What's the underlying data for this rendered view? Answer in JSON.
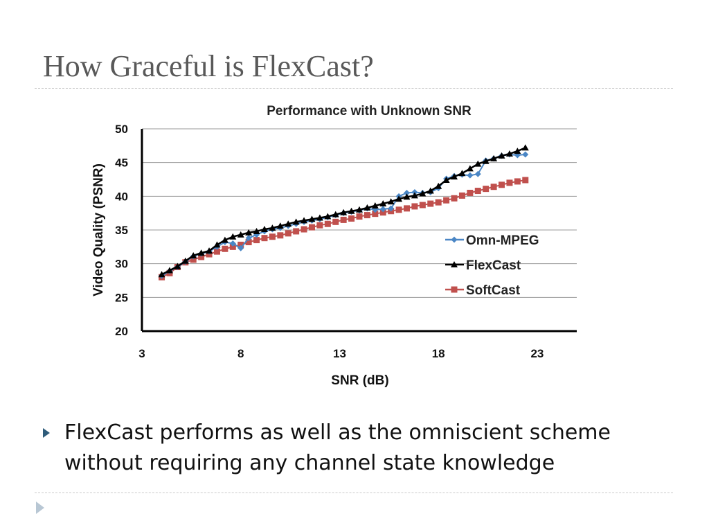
{
  "slide": {
    "title": "How Graceful is FlexCast?",
    "bullet_text": "FlexCast performs as well as the omniscient scheme without requiring any channel state knowledge"
  },
  "chart_data": {
    "type": "line",
    "title": "Performance with Unknown SNR",
    "xlabel": "SNR (dB)",
    "ylabel": "Video Quality (PSNR)",
    "xlim": [
      3,
      25
    ],
    "ylim": [
      20,
      50
    ],
    "xticks": [
      3,
      8,
      13,
      18,
      23
    ],
    "yticks": [
      20,
      25,
      30,
      35,
      40,
      45,
      50
    ],
    "grid": "horizontal",
    "legend_position": "right",
    "series": [
      {
        "name": "Omn-MPEG",
        "color": "#4a86c5",
        "marker": "diamond",
        "x": [
          4,
          4.4,
          4.8,
          5.2,
          5.6,
          6,
          6.4,
          6.8,
          7.2,
          7.6,
          8,
          8.4,
          8.8,
          9.2,
          9.6,
          10,
          10.4,
          10.8,
          11.2,
          11.6,
          12,
          12.4,
          12.8,
          13.2,
          13.6,
          14,
          14.4,
          14.8,
          15.2,
          15.6,
          16,
          16.4,
          16.8,
          17.2,
          17.6,
          18,
          18.4,
          18.8,
          19.2,
          19.6,
          20,
          20.4,
          20.8,
          21.2,
          21.6,
          22,
          22.4
        ],
        "y": [
          28.2,
          28.9,
          29.5,
          30.3,
          31.1,
          31.5,
          31.8,
          32.5,
          33.2,
          33.0,
          32.3,
          33.8,
          34.3,
          34.8,
          35.1,
          35.3,
          35.6,
          35.9,
          36.2,
          36.4,
          36.6,
          36.9,
          37.2,
          37.5,
          37.7,
          37.9,
          38.2,
          38.0,
          38.1,
          38.2,
          40.0,
          40.5,
          40.6,
          40.5,
          40.6,
          41.2,
          42.6,
          43.0,
          43.2,
          43.1,
          43.3,
          45.3,
          45.6,
          46.0,
          46.2,
          46.1,
          46.2
        ]
      },
      {
        "name": "FlexCast",
        "color": "#000000",
        "marker": "triangle",
        "x": [
          4,
          4.4,
          4.8,
          5.2,
          5.6,
          6,
          6.4,
          6.8,
          7.2,
          7.6,
          8,
          8.4,
          8.8,
          9.2,
          9.6,
          10,
          10.4,
          10.8,
          11.2,
          11.6,
          12,
          12.4,
          12.8,
          13.2,
          13.6,
          14,
          14.4,
          14.8,
          15.2,
          15.6,
          16,
          16.4,
          16.8,
          17.2,
          17.6,
          18,
          18.4,
          18.8,
          19.2,
          19.6,
          20,
          20.4,
          20.8,
          21.2,
          21.6,
          22,
          22.4
        ],
        "y": [
          28.4,
          29.0,
          29.6,
          30.4,
          31.2,
          31.6,
          31.9,
          32.8,
          33.5,
          34.0,
          34.3,
          34.6,
          34.8,
          35.1,
          35.3,
          35.6,
          35.9,
          36.2,
          36.4,
          36.6,
          36.8,
          37.0,
          37.3,
          37.6,
          37.8,
          38.0,
          38.3,
          38.6,
          38.9,
          39.2,
          39.6,
          39.9,
          40.1,
          40.4,
          40.8,
          41.5,
          42.4,
          42.9,
          43.4,
          44.1,
          44.8,
          45.2,
          45.6,
          46.0,
          46.3,
          46.7,
          47.2
        ]
      },
      {
        "name": "SoftCast",
        "color": "#c0504d",
        "marker": "square",
        "x": [
          4,
          4.4,
          4.8,
          5.2,
          5.6,
          6,
          6.4,
          6.8,
          7.2,
          7.6,
          8,
          8.4,
          8.8,
          9.2,
          9.6,
          10,
          10.4,
          10.8,
          11.2,
          11.6,
          12,
          12.4,
          12.8,
          13.2,
          13.6,
          14,
          14.4,
          14.8,
          15.2,
          15.6,
          16,
          16.4,
          16.8,
          17.2,
          17.6,
          18,
          18.4,
          18.8,
          19.2,
          19.6,
          20,
          20.4,
          20.8,
          21.2,
          21.6,
          22,
          22.4
        ],
        "y": [
          28.0,
          28.6,
          29.5,
          30.2,
          30.6,
          31.0,
          31.4,
          31.8,
          32.2,
          32.5,
          32.8,
          33.2,
          33.5,
          33.8,
          34.0,
          34.2,
          34.5,
          34.8,
          35.1,
          35.4,
          35.7,
          35.9,
          36.2,
          36.5,
          36.7,
          37.0,
          37.2,
          37.4,
          37.6,
          37.8,
          38.0,
          38.2,
          38.5,
          38.7,
          38.9,
          39.1,
          39.4,
          39.7,
          40.1,
          40.5,
          40.8,
          41.1,
          41.4,
          41.7,
          42.0,
          42.2,
          42.4
        ]
      }
    ]
  }
}
